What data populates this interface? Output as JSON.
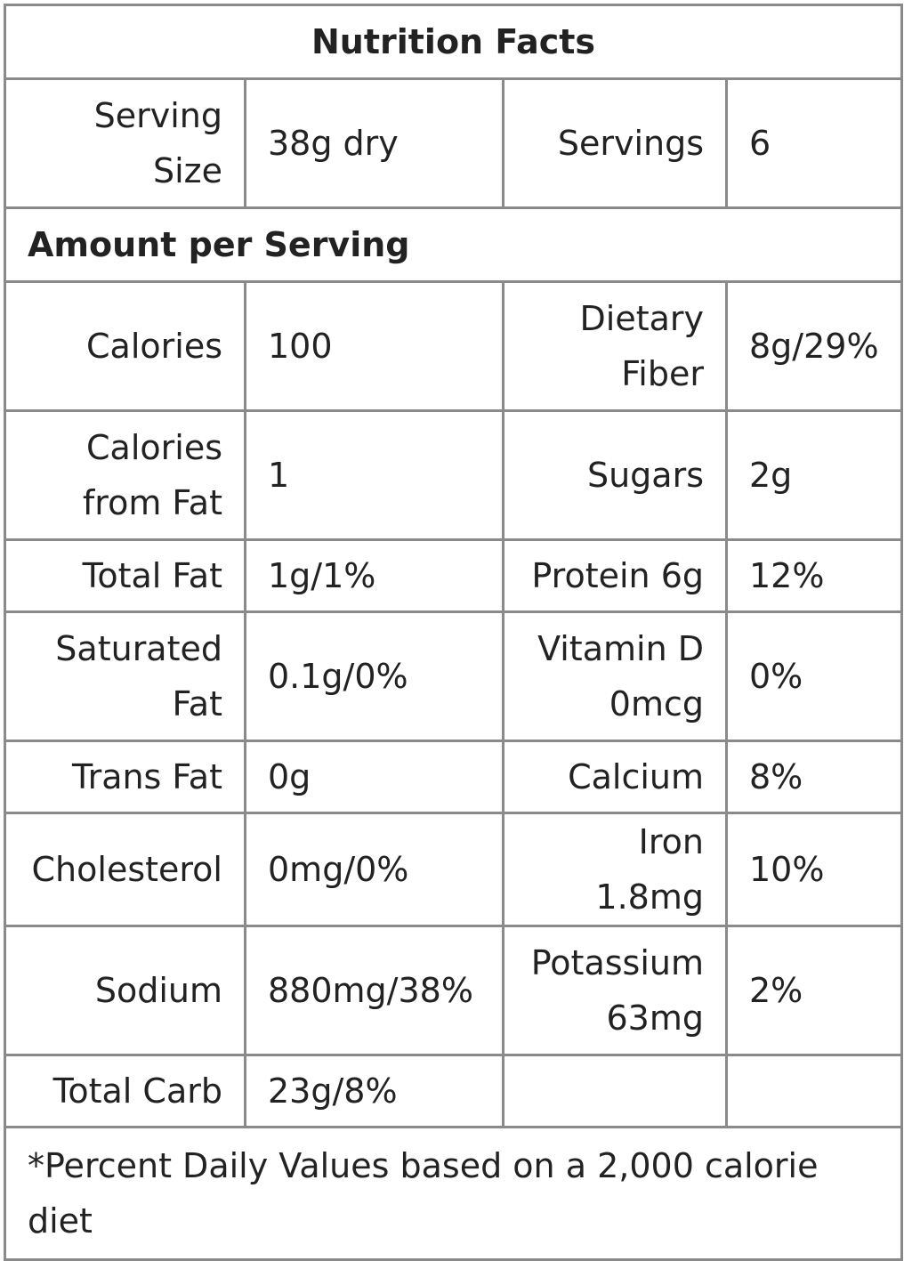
{
  "title": "Nutrition Facts",
  "serving": {
    "size_label": "Serving Size",
    "size_value": "38g dry",
    "servings_label": "Servings",
    "servings_value": "6"
  },
  "section_heading": "Amount per Serving",
  "rows": [
    {
      "left_label": "Calories",
      "left_value": "100",
      "right_label": "Dietary Fiber",
      "right_value": "8g/29%"
    },
    {
      "left_label": "Calories from Fat",
      "left_value": "1",
      "right_label": "Sugars",
      "right_value": "2g"
    },
    {
      "left_label": "Total Fat",
      "left_value": "1g/1%",
      "right_label": "Protein 6g",
      "right_value": "12%"
    },
    {
      "left_label": "Saturated Fat",
      "left_value": "0.1g/0%",
      "right_label": "Vitamin D 0mcg",
      "right_value": "0%"
    },
    {
      "left_label": "Trans Fat",
      "left_value": "0g",
      "right_label": "Calcium",
      "right_value": "8%"
    },
    {
      "left_label": "Cholesterol",
      "left_value": "0mg/0%",
      "right_label": "Iron 1.8mg",
      "right_value": "10%"
    },
    {
      "left_label": "Sodium",
      "left_value": "880mg/38%",
      "right_label": "Potassium 63mg",
      "right_value": "2%"
    },
    {
      "left_label": "Total Carb",
      "left_value": "23g/8%",
      "right_label": "",
      "right_value": ""
    }
  ],
  "footnote": "*Percent Daily Values based on a 2,000 calorie diet",
  "colors": {
    "border": "#8a8a8a",
    "text": "#222222",
    "background": "#ffffff"
  }
}
